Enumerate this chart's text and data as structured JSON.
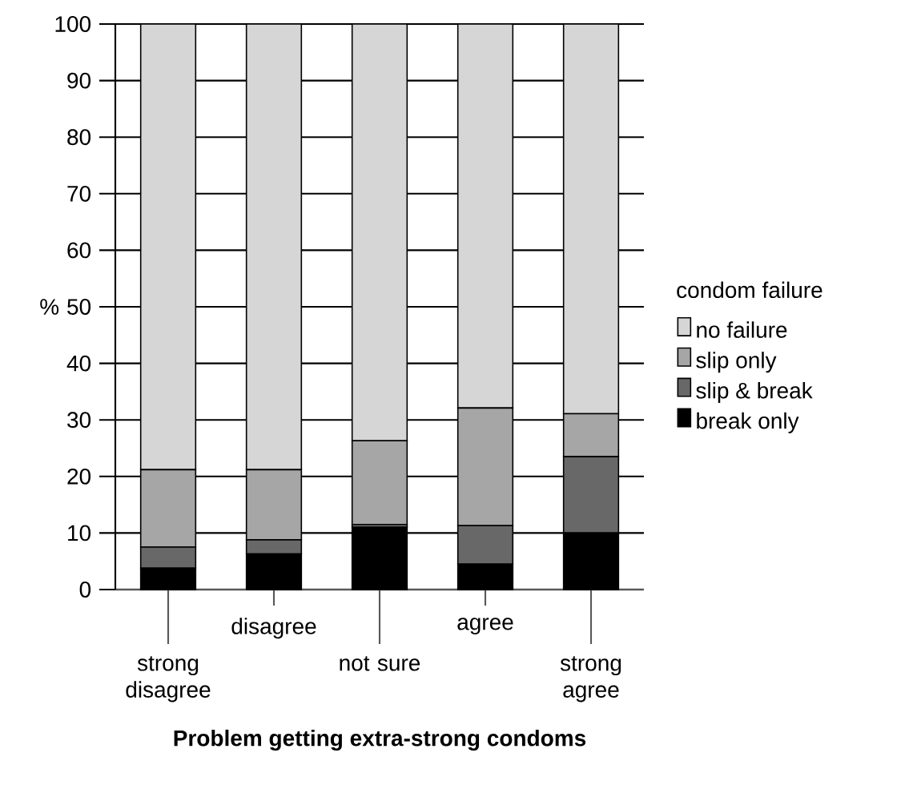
{
  "chart_data": {
    "type": "bar",
    "stacked": true,
    "xlabel": "Problem getting extra-strong condoms",
    "ylabel": "%",
    "legend_title": "condom failure",
    "categories": [
      "strong disagree",
      "disagree",
      "not sure",
      "agree",
      "strong agree"
    ],
    "series": [
      {
        "name": "break only",
        "color": "#000000",
        "values": [
          3.8,
          6.3,
          11,
          4.5,
          10
        ]
      },
      {
        "name": "slip & break",
        "color": "#686868",
        "values": [
          3.7,
          2.5,
          0.5,
          6.8,
          13.5
        ]
      },
      {
        "name": "slip only",
        "color": "#a6a6a6",
        "values": [
          13.7,
          12.4,
          14.8,
          20.8,
          7.6
        ]
      },
      {
        "name": "no failure",
        "color": "#d6d6d6",
        "values": [
          78.8,
          78.8,
          73.7,
          67.9,
          68.9
        ]
      }
    ],
    "ylim": [
      0,
      100
    ],
    "yticks": [
      0,
      10,
      20,
      30,
      40,
      50,
      60,
      70,
      80,
      90,
      100
    ],
    "grid": "y",
    "legend": "right"
  }
}
